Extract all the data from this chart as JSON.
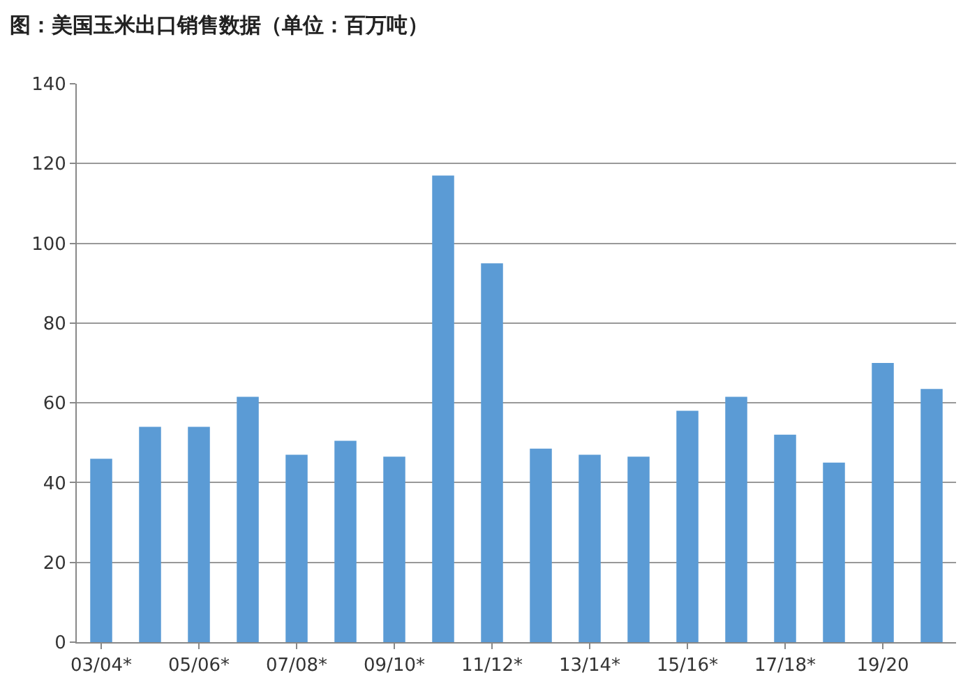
{
  "chart_data": {
    "type": "bar",
    "title": "图：美国玉米出口销售数据（单位：百万吨）",
    "categories": [
      "03/04*",
      null,
      "05/06*",
      null,
      "07/08*",
      null,
      "09/10*",
      null,
      "11/12*",
      null,
      "13/14*",
      null,
      "15/16*",
      null,
      "17/18*",
      null,
      "19/20",
      null
    ],
    "values": [
      46,
      54,
      54,
      61.5,
      47,
      50.5,
      46.5,
      117,
      95,
      48.5,
      47,
      46.5,
      58,
      61.5,
      52,
      45,
      70,
      63.5
    ],
    "color": "#5b9bd5",
    "ylim": [
      0,
      140
    ],
    "yticks": [
      0,
      20,
      40,
      60,
      80,
      100,
      120,
      140
    ],
    "grid": "y"
  }
}
